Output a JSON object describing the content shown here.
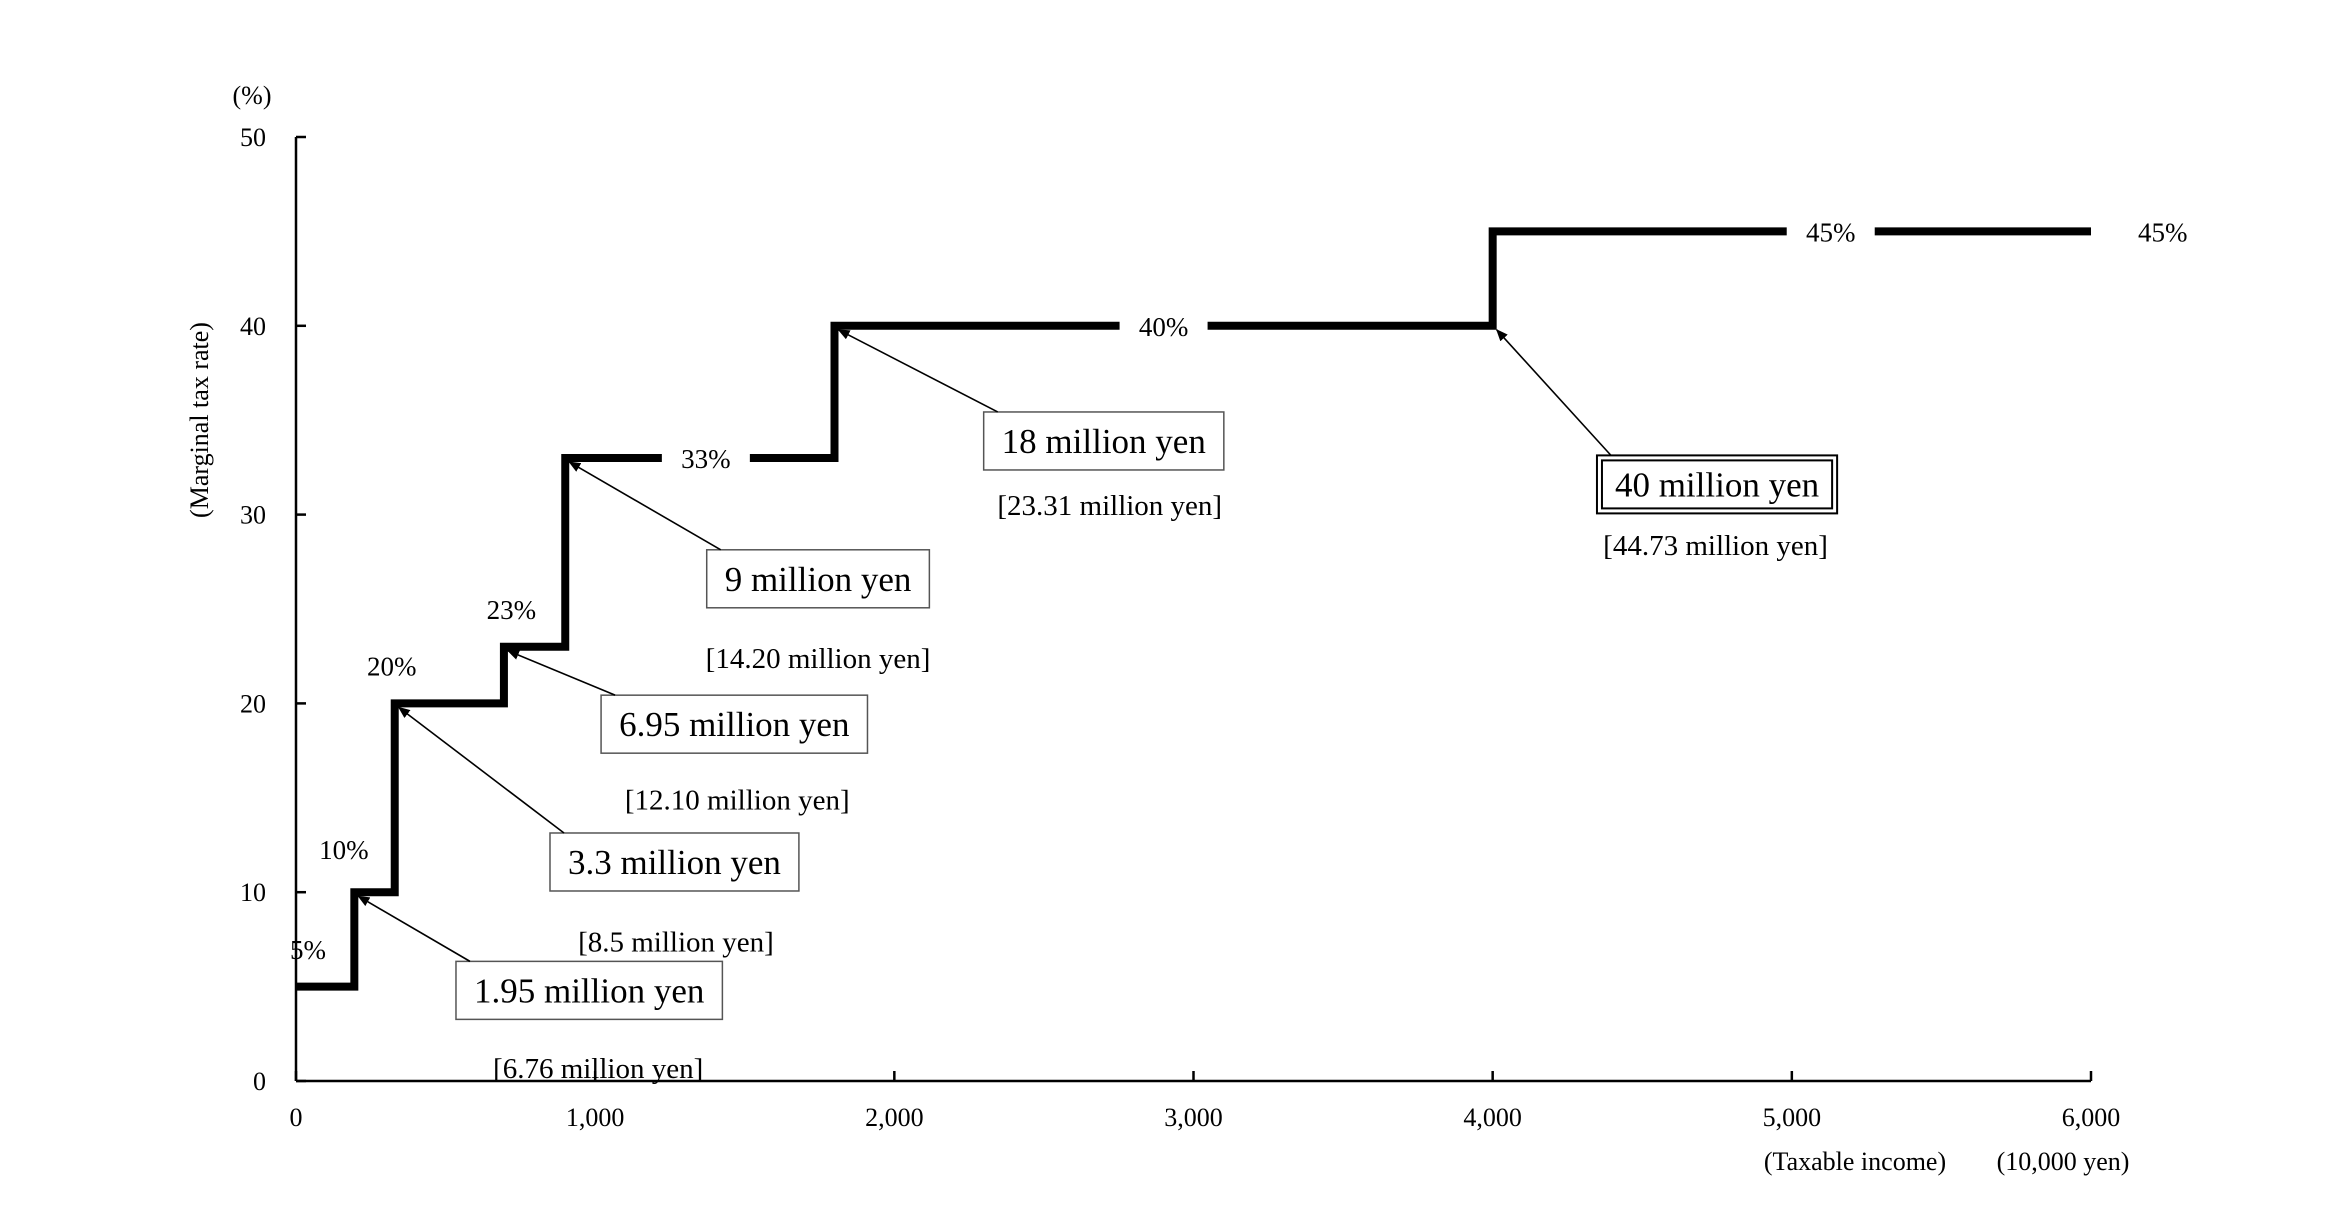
{
  "chart_data": {
    "type": "line",
    "subtype": "step",
    "title": "",
    "xlabel": "(Taxable income)",
    "xunit": "(10,000 yen)",
    "ylabel": "(Marginal tax rate)",
    "yunit": "(%)",
    "xlim": [
      0,
      6000
    ],
    "ylim": [
      0,
      50
    ],
    "x_ticks": [
      0,
      1000,
      2000,
      3000,
      4000,
      5000,
      6000
    ],
    "x_tick_labels": [
      "0",
      "1,000",
      "2,000",
      "3,000",
      "4,000",
      "5,000",
      "6,000"
    ],
    "y_ticks": [
      0,
      10,
      20,
      30,
      40,
      50
    ],
    "y_tick_labels": [
      "0",
      "10",
      "20",
      "30",
      "40",
      "50"
    ],
    "grid": false,
    "line_color": "#000000",
    "series": [
      {
        "points": [
          [
            0,
            5
          ],
          [
            195,
            5
          ],
          [
            195,
            10
          ],
          [
            330,
            10
          ],
          [
            330,
            20
          ],
          [
            695,
            20
          ],
          [
            695,
            23
          ],
          [
            900,
            23
          ],
          [
            900,
            33
          ],
          [
            1800,
            33
          ],
          [
            1800,
            40
          ],
          [
            4000,
            40
          ],
          [
            4000,
            45
          ],
          [
            6000,
            45
          ]
        ]
      }
    ],
    "rate_labels": [
      {
        "text": "5%",
        "x": 40,
        "y": 7
      },
      {
        "text": "10%",
        "x": 160,
        "y": 12.3
      },
      {
        "text": "20%",
        "x": 320,
        "y": 22
      },
      {
        "text": "23%",
        "x": 720,
        "y": 25
      },
      {
        "text": "33%",
        "x": 1370,
        "y": 33
      },
      {
        "text": "40%",
        "x": 2900,
        "y": 40
      },
      {
        "text": "45%",
        "x": 5130,
        "y": 45
      },
      {
        "text": "45%",
        "x": 6240,
        "y": 45
      }
    ],
    "annotations": [
      {
        "main": "1.95 million yen",
        "sub": "[6.76 million yen]",
        "target": [
          195,
          10
        ],
        "box_center": [
          980,
          4.8
        ],
        "sub_center": [
          1010,
          0.7
        ],
        "double_border": false
      },
      {
        "main": "3.3 million yen",
        "sub": "[8.5 million yen]",
        "target": [
          330,
          20
        ],
        "box_center": [
          1265,
          11.6
        ],
        "sub_center": [
          1270,
          7.4
        ],
        "double_border": false
      },
      {
        "main": "6.95 million yen",
        "sub": "[12.10 million yen]",
        "target": [
          695,
          23
        ],
        "box_center": [
          1465,
          18.9
        ],
        "sub_center": [
          1475,
          14.9
        ],
        "double_border": false
      },
      {
        "main": "9 million yen",
        "sub": "[14.20 million yen]",
        "target": [
          900,
          33
        ],
        "box_center": [
          1745,
          26.6
        ],
        "sub_center": [
          1745,
          22.4
        ],
        "double_border": false
      },
      {
        "main": "18 million yen",
        "sub": "[23.31 million yen]",
        "target": [
          1800,
          40
        ],
        "box_center": [
          2700,
          33.9
        ],
        "sub_center": [
          2720,
          30.5
        ],
        "double_border": false
      },
      {
        "main": "40 million yen",
        "sub": "[44.73 million yen]",
        "target": [
          4000,
          40
        ],
        "box_center": [
          4750,
          31.6
        ],
        "sub_center": [
          4745,
          28.4
        ],
        "double_border": true
      }
    ]
  }
}
